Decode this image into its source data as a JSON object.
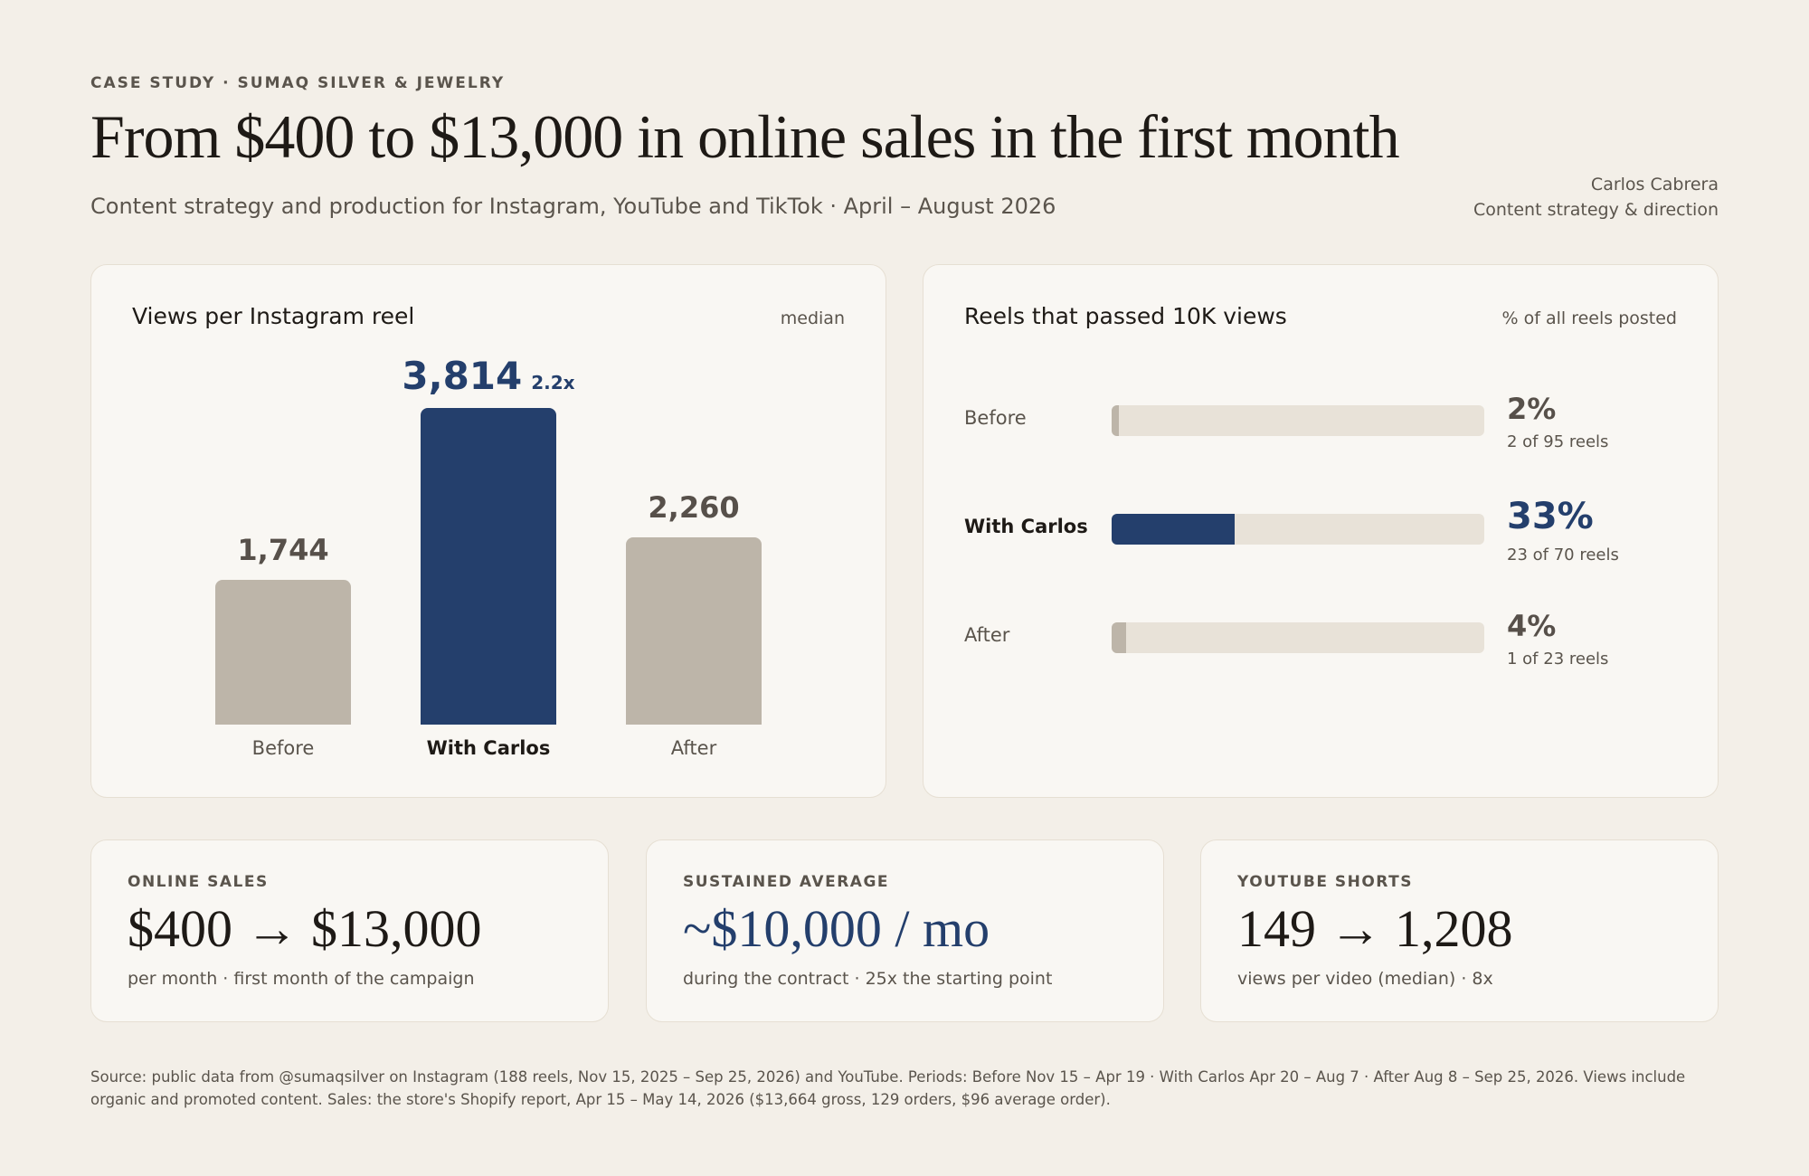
{
  "header": {
    "eyebrow": "CASE STUDY · SUMAQ SILVER & JEWELRY",
    "title": "From $400 to $13,000 in online sales in the first month",
    "subtitle": "Content strategy and production for Instagram, YouTube and TikTok · April – August 2026",
    "author_name": "Carlos Cabrera",
    "author_role": "Content strategy & direction"
  },
  "colors": {
    "accent": "#243f6c",
    "neutral_bar": "#bdb5a9",
    "track": "#e8e2d8",
    "background": "#f3efe8",
    "card": "#f9f7f3"
  },
  "chart_data": [
    {
      "type": "bar",
      "title": "Views per Instagram reel",
      "note": "median",
      "categories": [
        "Before",
        "With Carlos",
        "After"
      ],
      "values": [
        1744,
        3814,
        2260
      ],
      "value_labels": [
        "1,744",
        "3,814",
        "2,260"
      ],
      "highlight_index": 1,
      "highlight_multiplier": "2.2x",
      "ylim": [
        0,
        3814
      ]
    },
    {
      "type": "bar",
      "orientation": "horizontal",
      "title": "Reels that passed 10K views",
      "note": "% of all reels posted",
      "categories": [
        "Before",
        "With Carlos",
        "After"
      ],
      "values": [
        2,
        33,
        4
      ],
      "value_labels": [
        "2%",
        "33%",
        "4%"
      ],
      "sub_labels": [
        "2 of 95 reels",
        "23 of 70 reels",
        "1 of 23 reels"
      ],
      "highlight_index": 1,
      "xlim": [
        0,
        100
      ]
    }
  ],
  "stats": {
    "sales": {
      "label": "ONLINE SALES",
      "value": "$400 → $13,000",
      "sub": "per month · first month of the campaign"
    },
    "average": {
      "label": "SUSTAINED AVERAGE",
      "value": "~$10,000 / mo",
      "sub": "during the contract · 25x the starting point"
    },
    "youtube": {
      "label": "YOUTUBE SHORTS",
      "value": "149 → 1,208",
      "sub": "views per video (median) · 8x"
    }
  },
  "footnote": "Source: public data from @sumaqsilver on Instagram (188 reels, Nov 15, 2025 – Sep 25, 2026) and YouTube. Periods: Before Nov 15 – Apr 19 · With Carlos Apr 20 – Aug 7 · After Aug 8 – Sep 25, 2026. Views include organic and promoted content. Sales: the store's Shopify report, Apr 15 – May 14, 2026 ($13,664 gross, 129 orders, $96 average order)."
}
